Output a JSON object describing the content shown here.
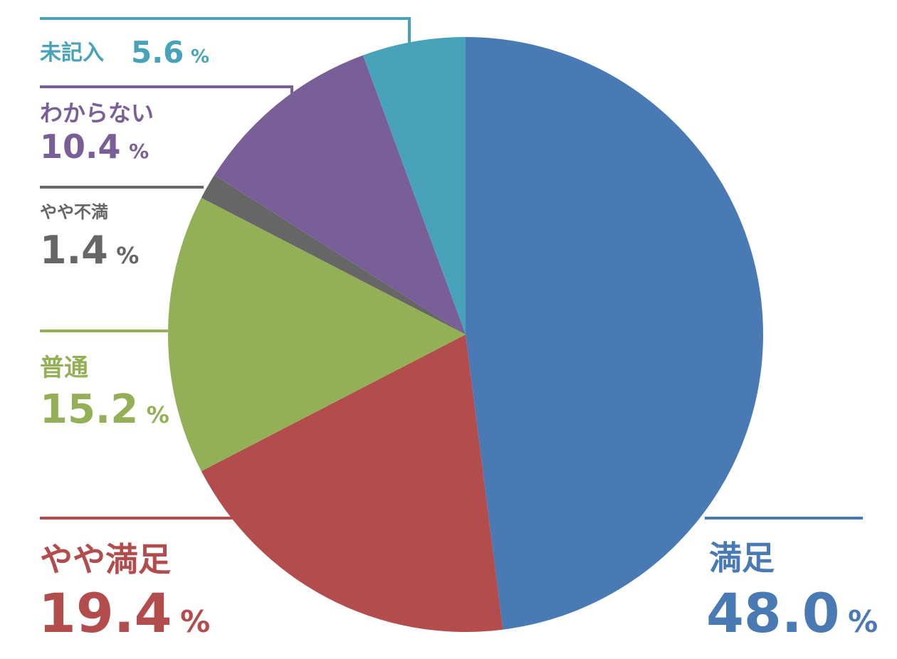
{
  "chart_data": {
    "type": "pie",
    "unit": "%",
    "slices": [
      {
        "label": "満足",
        "value": 48.0,
        "value_text": "48.0",
        "color": "#4a7ab3"
      },
      {
        "label": "やや満足",
        "value": 19.4,
        "value_text": "19.4",
        "color": "#b34c4c"
      },
      {
        "label": "普通",
        "value": 15.2,
        "value_text": "15.2",
        "color": "#94b056"
      },
      {
        "label": "やや不満",
        "value": 1.4,
        "value_text": "1.4",
        "color": "#666666"
      },
      {
        "label": "わからない",
        "value": 10.4,
        "value_text": "10.4",
        "color": "#785f98"
      },
      {
        "label": "未記入",
        "value": 5.6,
        "value_text": "5.6",
        "color": "#47a2ba"
      }
    ]
  }
}
